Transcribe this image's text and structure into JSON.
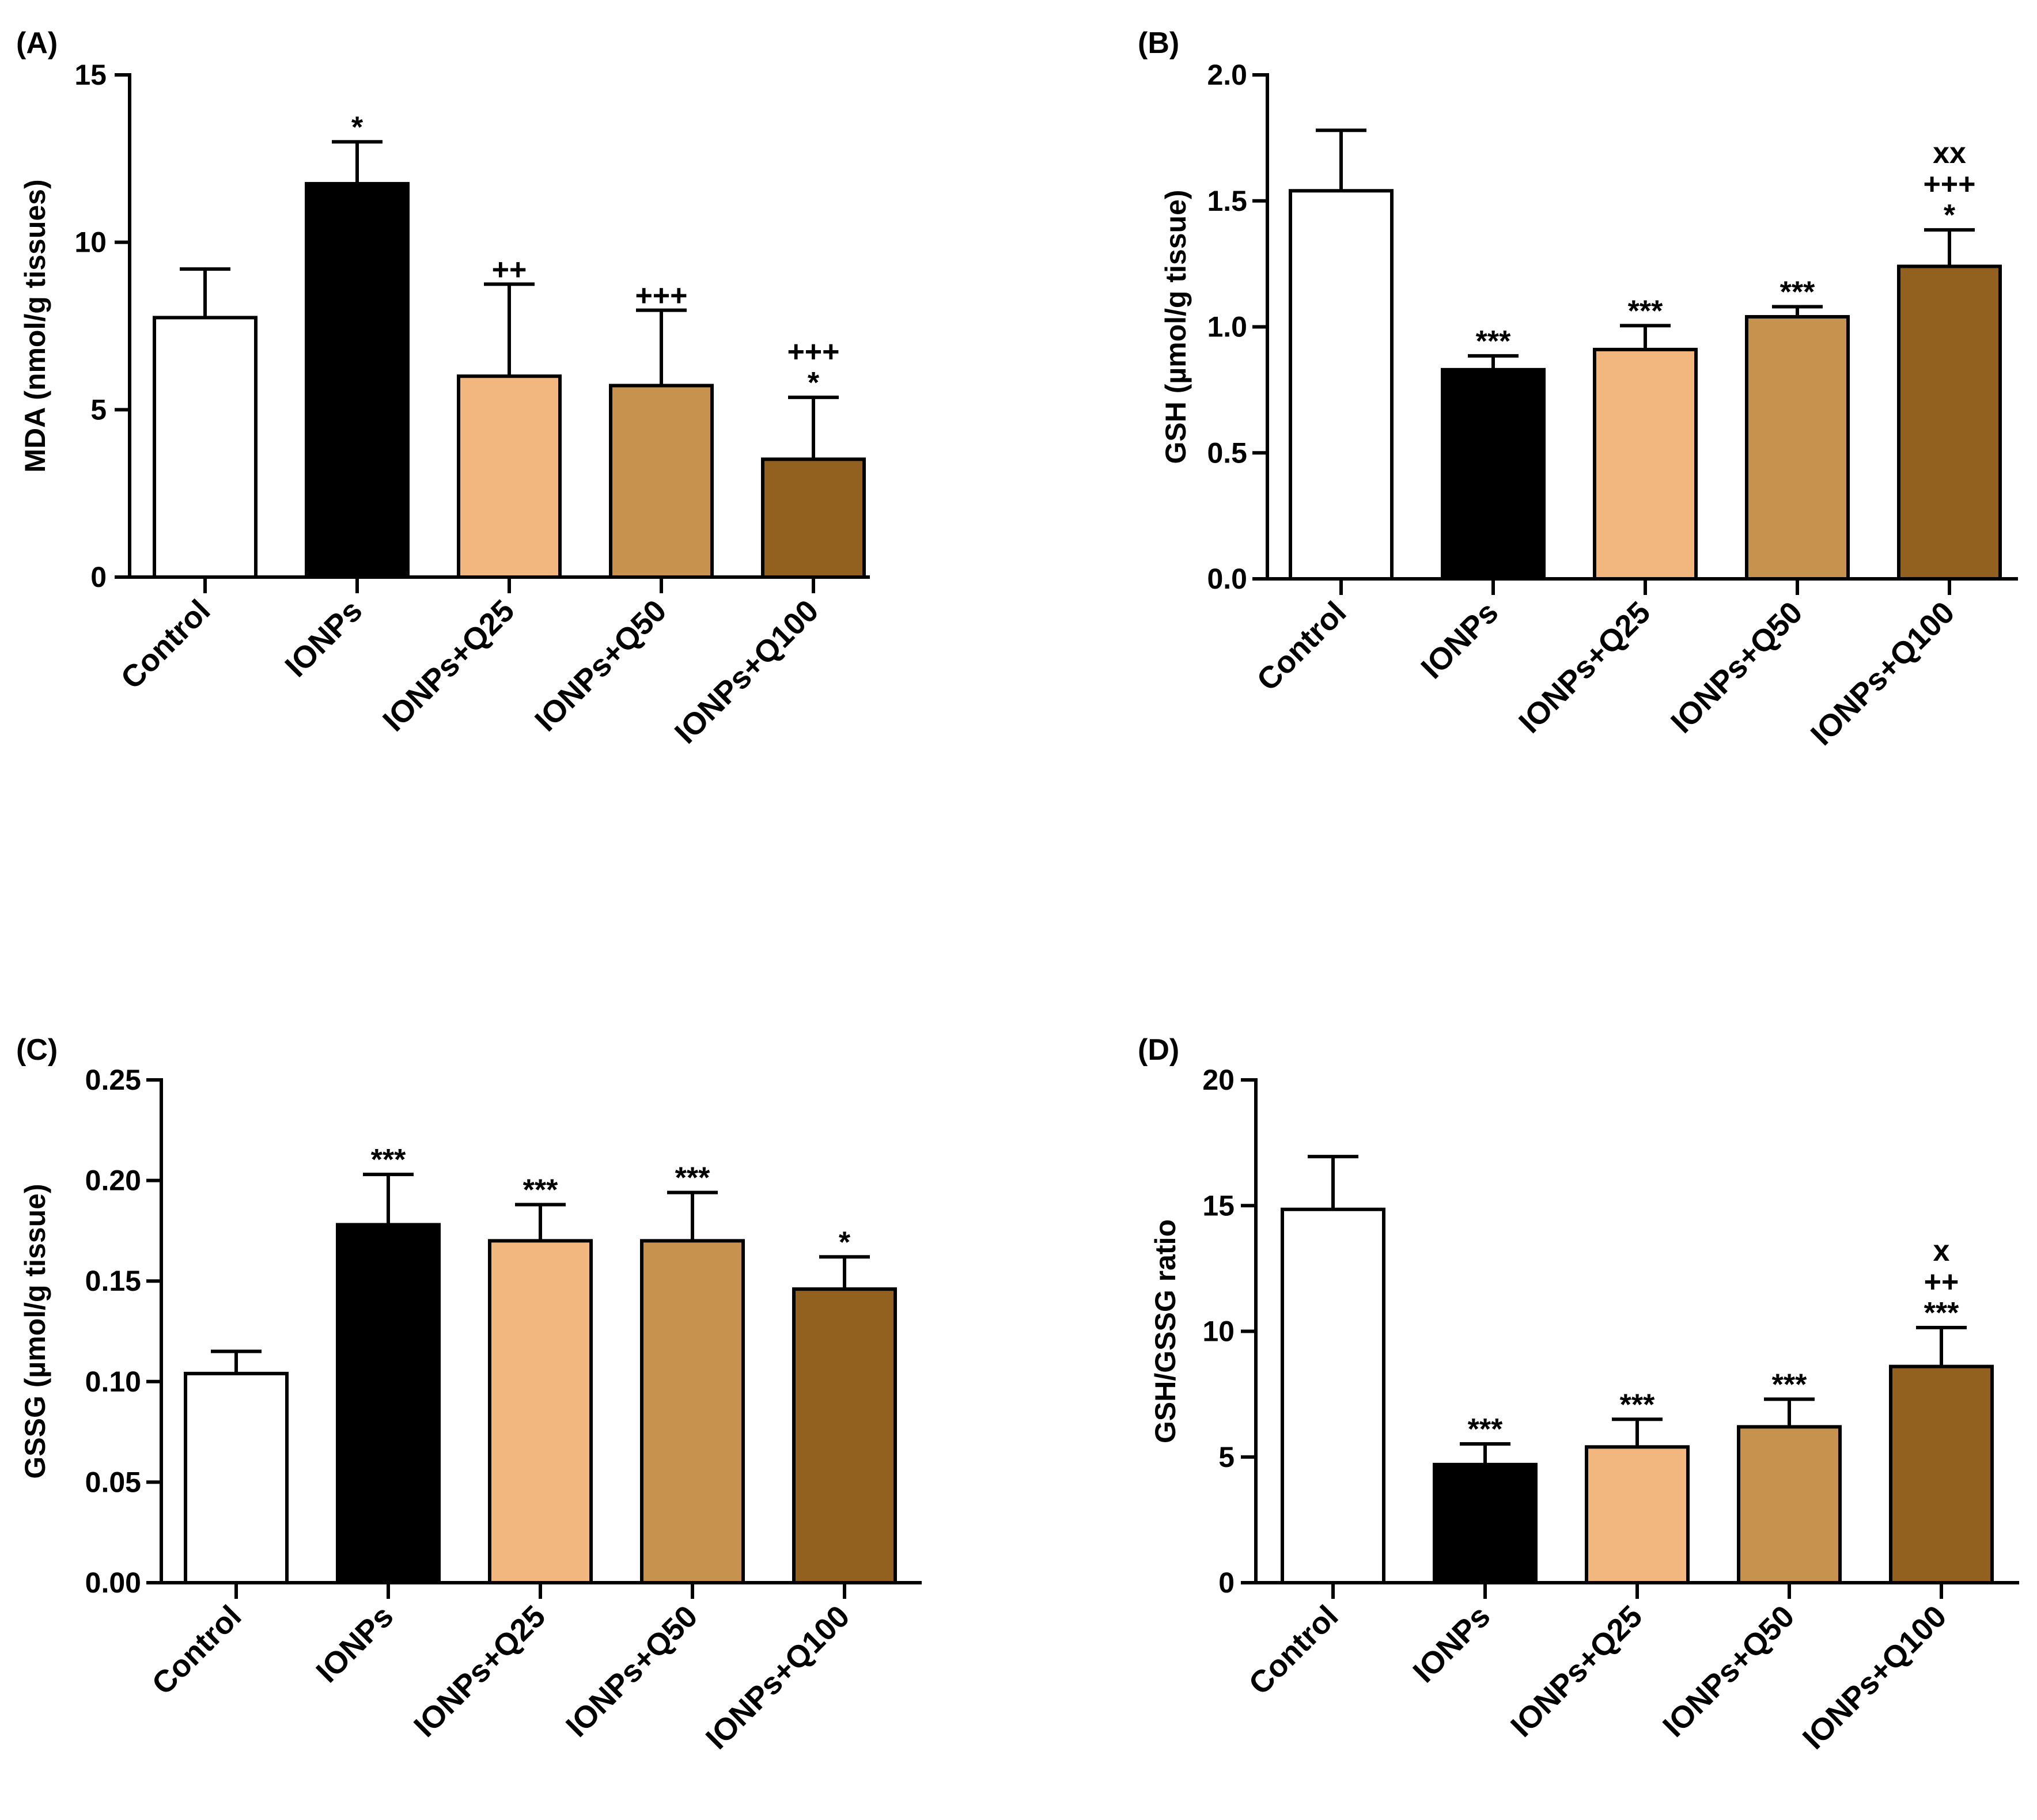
{
  "colors": {
    "Control": "#ffffff",
    "IONPs": "#000000",
    "IONPs+Q25": "#f1b77f",
    "IONPs+Q50": "#c6924e",
    "IONPs+Q100": "#926120"
  },
  "chart_data": [
    {
      "type": "bar",
      "panel": "(A)",
      "ylabel": "MDA (nmol/g tissues)",
      "ylim": [
        0,
        15
      ],
      "yticks": [
        0,
        5,
        10,
        15
      ],
      "yticklabels": [
        "0",
        "5",
        "10",
        "15"
      ],
      "categories": [
        "Control",
        "IONPs",
        "IONPs+Q25",
        "IONPs+Q50",
        "IONPs+Q100"
      ],
      "values": [
        7.75,
        11.75,
        6.0,
        5.72,
        3.52
      ],
      "errors": [
        1.45,
        1.25,
        2.75,
        2.25,
        1.85
      ],
      "annotations": [
        [],
        [
          "*"
        ],
        [
          "++"
        ],
        [
          "+++"
        ],
        [
          "+++",
          "*"
        ]
      ]
    },
    {
      "type": "bar",
      "panel": "(B)",
      "ylabel": "GSH (µmol/g tissue)",
      "ylim": [
        0,
        2.0
      ],
      "yticks": [
        0,
        0.5,
        1.0,
        1.5,
        2.0
      ],
      "yticklabels": [
        "0.0",
        "0.5",
        "1.0",
        "1.5",
        "2.0"
      ],
      "categories": [
        "Control",
        "IONPs",
        "IONPs+Q25",
        "IONPs+Q50",
        "IONPs+Q100"
      ],
      "values": [
        1.54,
        0.83,
        0.91,
        1.04,
        1.24
      ],
      "errors": [
        0.24,
        0.055,
        0.095,
        0.04,
        0.145
      ],
      "annotations": [
        [],
        [
          "***"
        ],
        [
          "***"
        ],
        [
          "***"
        ],
        [
          "xx",
          "+++",
          "*"
        ]
      ]
    },
    {
      "type": "bar",
      "panel": "(C)",
      "ylabel": "GSSG (µmol/g tissue)",
      "ylim": [
        0,
        0.25
      ],
      "yticks": [
        0,
        0.05,
        0.1,
        0.15,
        0.2,
        0.25
      ],
      "yticklabels": [
        "0.00",
        "0.05",
        "0.10",
        "0.15",
        "0.20",
        "0.25"
      ],
      "categories": [
        "Control",
        "IONPs",
        "IONPs+Q25",
        "IONPs+Q50",
        "IONPs+Q100"
      ],
      "values": [
        0.104,
        0.178,
        0.17,
        0.17,
        0.146
      ],
      "errors": [
        0.011,
        0.025,
        0.018,
        0.024,
        0.016
      ],
      "annotations": [
        [],
        [
          "***"
        ],
        [
          "***"
        ],
        [
          "***"
        ],
        [
          "*"
        ]
      ]
    },
    {
      "type": "bar",
      "panel": "(D)",
      "ylabel": "GSH/GSSG ratio",
      "ylim": [
        0,
        20
      ],
      "yticks": [
        0,
        5,
        10,
        15,
        20
      ],
      "yticklabels": [
        "0",
        "5",
        "10",
        "15",
        "20"
      ],
      "categories": [
        "Control",
        "IONPs",
        "IONPs+Q25",
        "IONPs+Q50",
        "IONPs+Q100"
      ],
      "values": [
        14.85,
        4.7,
        5.4,
        6.2,
        8.6
      ],
      "errors": [
        2.1,
        0.82,
        1.1,
        1.1,
        1.55
      ],
      "annotations": [
        [],
        [
          "***"
        ],
        [
          "***"
        ],
        [
          "***"
        ],
        [
          "x",
          "++",
          "***"
        ]
      ]
    }
  ]
}
